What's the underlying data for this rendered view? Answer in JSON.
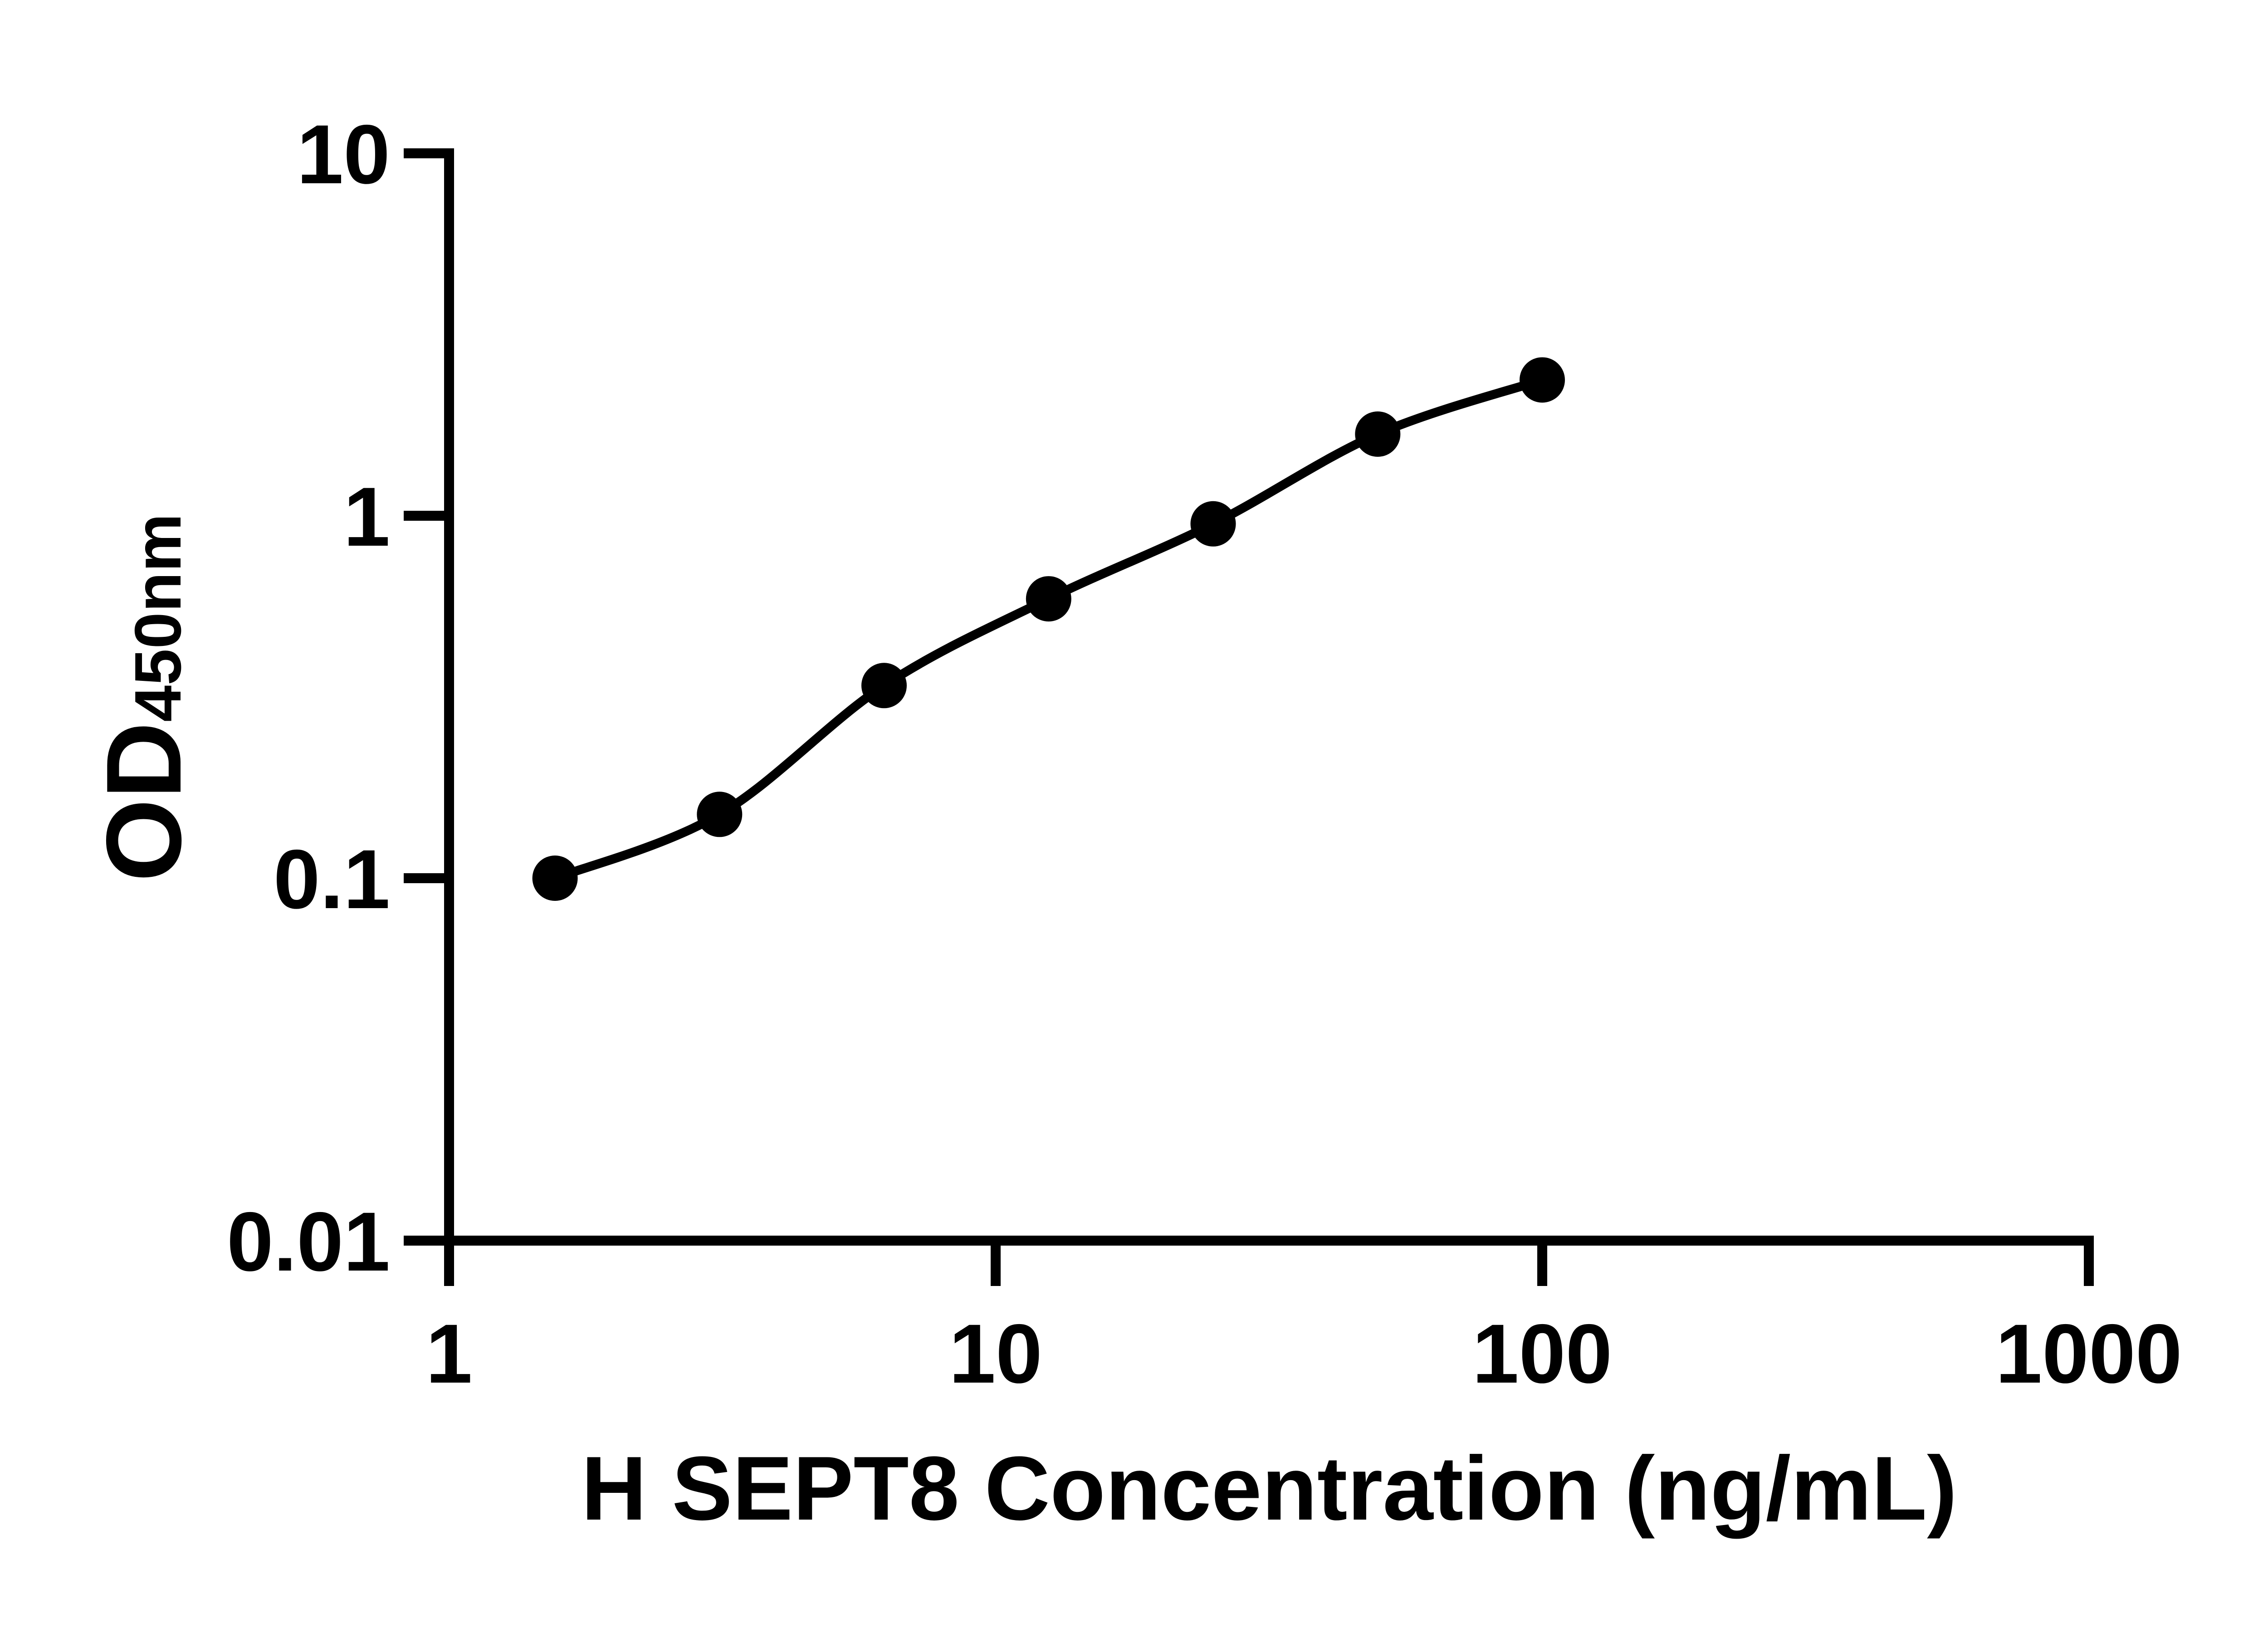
{
  "figure": {
    "background_color": "#ffffff",
    "ink_color": "#000000"
  },
  "chart_data": {
    "type": "scatter",
    "title": "",
    "grid": false,
    "legend": "none",
    "x_axis": {
      "label": "H SEPT8 Concentration (ng/mL)",
      "scale": "log10",
      "range": [
        1,
        1000
      ],
      "ticks": [
        1,
        10,
        100,
        1000
      ],
      "tick_labels": [
        "1",
        "10",
        "100",
        "1000"
      ]
    },
    "y_axis": {
      "label_main": "OD",
      "label_sub": "450nm",
      "scale": "log10",
      "range": [
        0.01,
        10
      ],
      "ticks": [
        10,
        1,
        0.1,
        0.01
      ],
      "tick_labels": [
        "10",
        "1",
        "0.1",
        "0.01"
      ]
    },
    "series": [
      {
        "marker": "filled-circle",
        "color": "#000000",
        "line": "smooth-fit",
        "x": [
          1.5625,
          3.125,
          6.25,
          12.5,
          25,
          50,
          100
        ],
        "y": [
          0.1,
          0.15,
          0.34,
          0.59,
          0.95,
          1.68,
          2.37
        ]
      }
    ]
  }
}
